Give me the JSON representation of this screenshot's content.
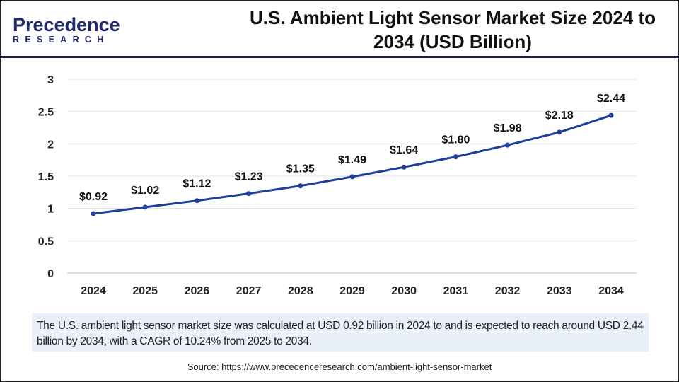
{
  "logo": {
    "line1": "Precedence",
    "line2": "RESEARCH"
  },
  "title": "U.S. Ambient Light Sensor Market Size 2024 to 2034 (USD Billion)",
  "chart_data": {
    "type": "line",
    "title": "U.S. Ambient Light Sensor Market Size 2024 to 2034 (USD Billion)",
    "x": [
      "2024",
      "2025",
      "2026",
      "2027",
      "2028",
      "2029",
      "2030",
      "2031",
      "2032",
      "2033",
      "2034"
    ],
    "values": [
      0.92,
      1.02,
      1.12,
      1.23,
      1.35,
      1.49,
      1.64,
      1.8,
      1.98,
      2.18,
      2.44
    ],
    "labels": [
      "$0.92",
      "$1.02",
      "$1.12",
      "$1.23",
      "$1.35",
      "$1.49",
      "$1.64",
      "$1.80",
      "$1.98",
      "$2.18",
      "$2.44"
    ],
    "yticks": [
      "0",
      "0.5",
      "1",
      "1.5",
      "2",
      "2.5",
      "3"
    ],
    "ylim": [
      0,
      3
    ],
    "grid": true,
    "line_color": "#1f3f9a"
  },
  "info": "The U.S. ambient light sensor market size was calculated at USD 0.92 billion in 2024 to and is expected to reach around USD 2.44 billion by 2034, with a CAGR of 10.24% from 2025 to 2034.",
  "source": "Source: https://www.precedenceresearch.com/ambient-light-sensor-market"
}
